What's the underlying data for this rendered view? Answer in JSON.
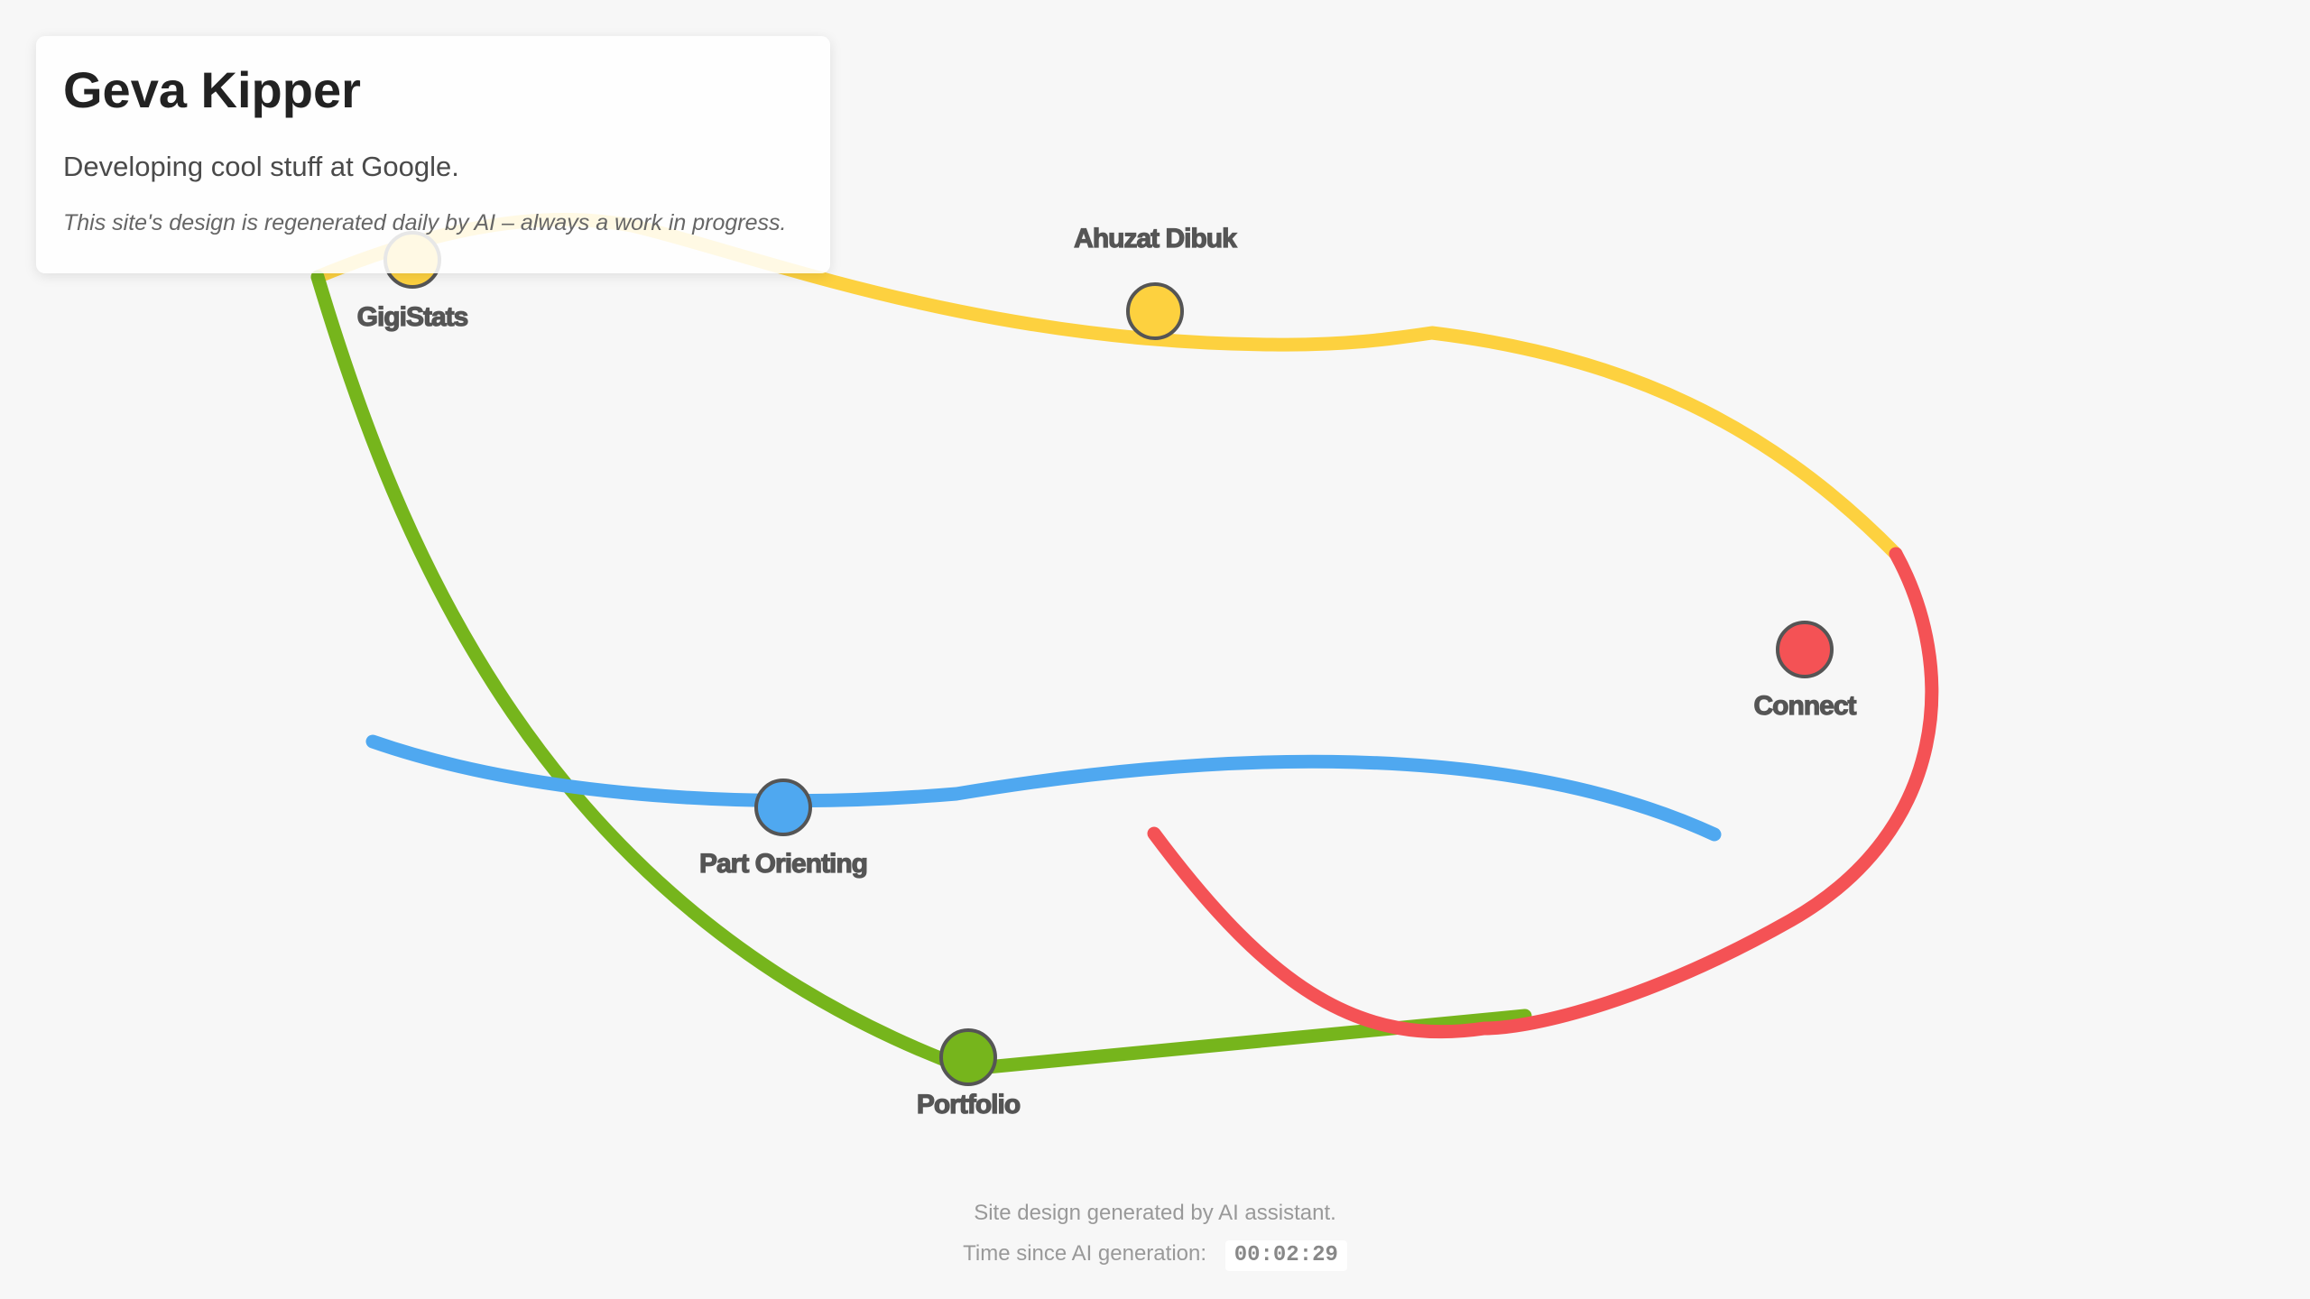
{
  "header": {
    "title": "Geva Kipper",
    "tagline": "Developing cool stuff at Google.",
    "note": "This site's design is regenerated daily by AI – always a work in progress."
  },
  "map": {
    "routes": [
      {
        "name": "yellow-line",
        "color": "#fdd13f"
      },
      {
        "name": "green-line",
        "color": "#76b51c"
      },
      {
        "name": "blue-line",
        "color": "#4fa8f0"
      },
      {
        "name": "red-line",
        "color": "#f45255"
      }
    ],
    "stations": [
      {
        "id": "gigistats",
        "label": "GigiStats",
        "color": "#fdd13f"
      },
      {
        "id": "ahuzat-dibuk",
        "label": "Ahuzat Dibuk",
        "color": "#fdd13f"
      },
      {
        "id": "connect",
        "label": "Connect",
        "color": "#f45255"
      },
      {
        "id": "part-orienting",
        "label": "Part Orienting",
        "color": "#4fa8f0"
      },
      {
        "id": "portfolio",
        "label": "Portfolio",
        "color": "#76b51c"
      }
    ]
  },
  "footer": {
    "credit": "Site design generated by AI assistant.",
    "timer_label": "Time since AI generation:",
    "timer_value": "00:02:29"
  }
}
